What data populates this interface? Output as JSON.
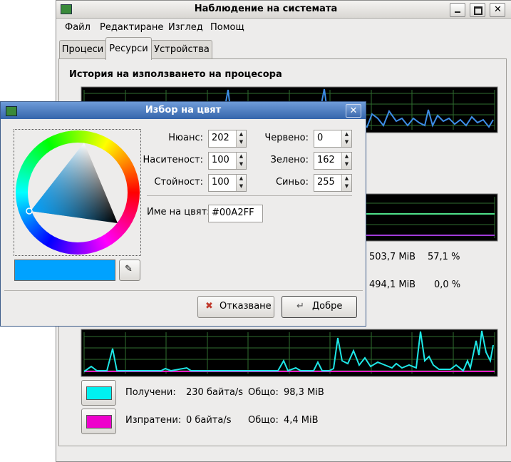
{
  "window": {
    "title": "Наблюдение на системата",
    "menu": [
      "Файл",
      "Редактиране",
      "Изглед",
      "Помощ"
    ],
    "tabs": [
      "Процеси",
      "Ресурси",
      "Устройства"
    ]
  },
  "cpu_section": {
    "title": "История на използването на процесора"
  },
  "memory": {
    "rows": [
      [
        "503,7 MiB",
        "57,1 %"
      ],
      [
        "494,1 MiB",
        "0,0 %"
      ]
    ]
  },
  "network": {
    "rows": [
      {
        "label": "Получени:",
        "rate": "230 байта/s",
        "total_label": "Общо:",
        "total": "98,3 MiB"
      },
      {
        "label": "Изпратени:",
        "rate": "0 байта/s",
        "total_label": "Общо:",
        "total": "4,4 MiB"
      }
    ]
  },
  "dialog": {
    "title": "Избор на цвят",
    "fields": [
      {
        "label": "Нюанс:",
        "value": "202"
      },
      {
        "label": "Червено:",
        "value": "0"
      },
      {
        "label": "Наситеност:",
        "value": "100"
      },
      {
        "label": "Зелено:",
        "value": "162"
      },
      {
        "label": "Стойност:",
        "value": "100"
      },
      {
        "label": "Синьо:",
        "value": "255"
      }
    ],
    "color_name_label": "Име на цвят:",
    "color_name": "#00A2FF",
    "buttons": [
      "Отказване",
      "Добре"
    ]
  }
}
